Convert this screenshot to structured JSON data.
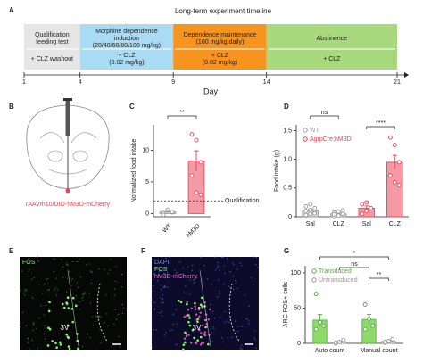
{
  "timeline": {
    "label": "A",
    "title": "Long-term experiment timeline",
    "x_label": "Day",
    "xlim": [
      1,
      21
    ],
    "ticks": [
      1,
      4,
      9,
      14,
      21
    ],
    "segments": [
      {
        "start": 1,
        "end": 4,
        "color": "#e6e6e6",
        "top": [
          "Qualification",
          "feeding test"
        ],
        "bottom": [
          "+ CLZ washout"
        ]
      },
      {
        "start": 4,
        "end": 9,
        "color": "#a9dcf4",
        "top": [
          "Morphine dependence",
          "induction",
          "(20/40/60/80/100 mg/kg)"
        ],
        "bottom": [
          "+ CLZ",
          "(0.02 mg/kg)"
        ]
      },
      {
        "start": 9,
        "end": 14,
        "color": "#f7941d",
        "top": [
          "Dependence maintenance",
          "(100 mg/kg daily)"
        ],
        "bottom": [
          "+ CLZ",
          "(0.02 mg/kg)"
        ]
      },
      {
        "start": 14,
        "end": 21,
        "color": "#a8d97c",
        "top": [
          "Abstinence"
        ],
        "bottom": [
          "+ CLZ"
        ]
      }
    ]
  },
  "brain": {
    "label": "B",
    "caption": "rAAVrh10/DIO-hM3D-mCherry"
  },
  "images": [
    {
      "label": "E",
      "channels": [
        {
          "text": "FOS",
          "color": "#5cff5c"
        }
      ],
      "region": "3V"
    },
    {
      "label": "F",
      "channels": [
        {
          "text": "DAPI",
          "color": "#6f8cff"
        },
        {
          "text": "FOS",
          "color": "#5cff5c"
        },
        {
          "text": "hM3D-mCherry",
          "color": "#ff6ad0"
        }
      ],
      "region": "3V"
    }
  ],
  "chart_data": [
    {
      "label": "C",
      "type": "bar",
      "y_label": "Normalized food intake",
      "categories": [
        "WT",
        "hM3D"
      ],
      "ylim": [
        -0.5,
        14
      ],
      "yticks": [
        0,
        5,
        10
      ],
      "reference": {
        "value": 2,
        "label": "Qualification"
      },
      "series": [
        {
          "color": "#999999",
          "fill": "#d9d9d9",
          "values": [
            0.3,
            null
          ],
          "errors": [
            0.2,
            null
          ],
          "points": [
            [
              0.1,
              0.5,
              0.2,
              -0.2,
              0.6,
              0.3
            ],
            null
          ]
        },
        {
          "color": "#e8414f",
          "fill": "#f49aa5",
          "values": [
            null,
            8.3
          ],
          "errors": [
            null,
            1.6
          ],
          "points": [
            null,
            [
              12.5,
              11.6,
              8.1,
              6.0,
              3.3,
              3.0
            ]
          ]
        }
      ],
      "annotations": [
        {
          "text": "**",
          "between": [
            [
              0,
              0
            ],
            [
              1,
              1
            ]
          ]
        }
      ]
    },
    {
      "label": "D",
      "type": "bar",
      "y_label": "Food intake (g)",
      "categories": [
        "Sal",
        "CLZ",
        "Sal",
        "CLZ"
      ],
      "ylim": [
        0,
        1.6
      ],
      "yticks": [
        0,
        0.5,
        {
          "value": 1,
          "label": "1.0"
        },
        1.5
      ],
      "series": [
        {
          "name": "WT",
          "color": "#999999",
          "fill": "#d9d9d9",
          "values": [
            0.1,
            0.05,
            null,
            null
          ],
          "errors": [
            0.03,
            0.02,
            null,
            null
          ],
          "points": [
            [
              0.02,
              0.05,
              0.08,
              0.1,
              0.12,
              0.15,
              0.18,
              0.22,
              0.06,
              0.03
            ],
            [
              0.01,
              0.03,
              0.05,
              0.07,
              0.09,
              0.11,
              0.04,
              0.02
            ],
            null,
            null
          ]
        },
        {
          "name": "AgrpCre;hM3D",
          "color": "#e8414f",
          "fill": "#f49aa5",
          "values": [
            null,
            null,
            0.15,
            0.95
          ],
          "errors": [
            null,
            null,
            0.04,
            0.12
          ],
          "points": [
            null,
            null,
            [
              0.05,
              0.1,
              0.15,
              0.22,
              0.25
            ],
            [
              1.38,
              1.25,
              0.95,
              0.72,
              0.6,
              0.55
            ]
          ]
        }
      ],
      "annotations": [
        {
          "text": "ns",
          "between": [
            [
              0,
              0
            ],
            [
              1,
              0
            ]
          ]
        },
        {
          "text": "****",
          "between": [
            [
              2,
              1
            ],
            [
              3,
              1
            ]
          ]
        }
      ]
    },
    {
      "label": "G",
      "type": "bar",
      "y_label": "ARC FOS+ cells",
      "categories": [
        "Auto count",
        "Manual count"
      ],
      "ylim": [
        0,
        110
      ],
      "yticks": [
        0,
        50,
        100
      ],
      "series": [
        {
          "name": "Transduced",
          "color": "#4caf3a",
          "fill": "#8fd96b",
          "values": [
            33,
            34
          ],
          "errors": [
            8,
            7
          ],
          "points": [
            [
              70,
              30,
              25,
              20
            ],
            [
              55,
              35,
              25,
              20
            ]
          ]
        },
        {
          "name": "Untransduced",
          "color": "#999999",
          "fill": "#e0e0e0",
          "values": [
            2,
            3
          ],
          "errors": [
            1,
            1
          ],
          "points": [
            [
              0,
              2,
              5,
              1
            ],
            [
              1,
              3,
              6,
              2
            ]
          ]
        }
      ],
      "annotations": [
        {
          "text": "*",
          "between": [
            [
              0,
              0
            ],
            [
              1,
              1
            ]
          ]
        },
        {
          "text": "ns",
          "between": [
            [
              1,
              0
            ],
            [
              0,
              1
            ]
          ]
        },
        {
          "text": "**",
          "between": [
            [
              1,
              0
            ],
            [
              1,
              1
            ]
          ]
        }
      ]
    }
  ]
}
